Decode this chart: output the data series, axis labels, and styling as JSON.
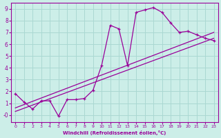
{
  "xlabel": "Windchill (Refroidissement éolien,°C)",
  "background_color": "#cceee8",
  "grid_color": "#aad8d2",
  "line_color": "#990099",
  "xlim": [
    -0.5,
    23.5
  ],
  "ylim": [
    -0.6,
    9.5
  ],
  "xticks": [
    0,
    1,
    2,
    3,
    4,
    5,
    6,
    7,
    8,
    9,
    10,
    11,
    12,
    13,
    14,
    15,
    16,
    17,
    18,
    19,
    20,
    21,
    22,
    23
  ],
  "yticks": [
    0,
    1,
    2,
    3,
    4,
    5,
    6,
    7,
    8,
    9
  ],
  "ytick_labels": [
    "-0",
    "1",
    "2",
    "3",
    "4",
    "5",
    "6",
    "7",
    "8",
    "9"
  ],
  "curve1_x": [
    0,
    1,
    2,
    3,
    4,
    5,
    6,
    7,
    8,
    9,
    10,
    11,
    12,
    13,
    14,
    15,
    16,
    17,
    18,
    19,
    20,
    21,
    22,
    23
  ],
  "curve1_y": [
    1.8,
    1.1,
    0.5,
    1.2,
    1.2,
    -0.1,
    1.3,
    1.3,
    1.4,
    2.1,
    4.2,
    7.6,
    7.3,
    4.2,
    8.7,
    8.9,
    9.1,
    8.7,
    7.8,
    7.0,
    7.1,
    6.8,
    6.5,
    6.3
  ],
  "line1_x": [
    0,
    23
  ],
  "line1_y": [
    0.6,
    7.0
  ],
  "line2_x": [
    0,
    23
  ],
  "line2_y": [
    0.3,
    6.5
  ]
}
